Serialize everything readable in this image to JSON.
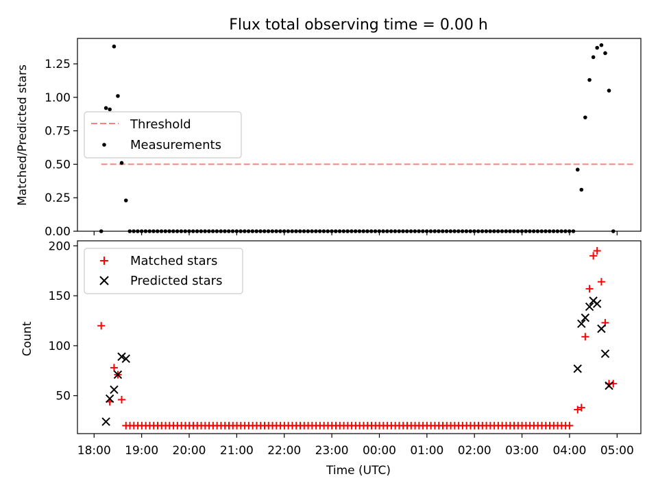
{
  "figure": {
    "title": "Flux total observing time = 0.00 h"
  },
  "chart_data": [
    {
      "type": "scatter",
      "title": "Flux total observing time = 0.00 h",
      "xlabel": "",
      "ylabel": "Matched/Predicted stars",
      "x_unit": "hours since 18:00 UTC",
      "xlim": [
        -0.35,
        11.5
      ],
      "ylim": [
        0,
        1.44
      ],
      "yticks": [
        0,
        0.25,
        0.5,
        0.75,
        1.0,
        1.25
      ],
      "ytick_labels": [
        "0.00",
        "0.25",
        "0.50",
        "0.75",
        "1.00",
        "1.25"
      ],
      "grid": false,
      "legend": {
        "placement": "center-left",
        "entries": [
          "Threshold",
          "Measurements"
        ]
      },
      "threshold": {
        "name": "Threshold",
        "value": 0.5,
        "x_range": [
          0.15,
          11.35
        ],
        "color": "#ff7f7f",
        "style": "dashed"
      },
      "series": [
        {
          "name": "Measurements",
          "marker": "dot",
          "color": "#000000",
          "points": [
            [
              0.15,
              0
            ],
            [
              0.25,
              0.92
            ],
            [
              0.33,
              0.91
            ],
            [
              0.42,
              1.38
            ],
            [
              0.5,
              1.01
            ],
            [
              0.58,
              0.51
            ],
            [
              0.67,
              0.23
            ],
            [
              10.17,
              0.46
            ],
            [
              10.25,
              0.31
            ],
            [
              10.33,
              0.85
            ],
            [
              10.42,
              1.13
            ],
            [
              10.5,
              1.3
            ],
            [
              10.58,
              1.37
            ],
            [
              10.67,
              1.39
            ],
            [
              10.75,
              1.33
            ],
            [
              10.83,
              1.05
            ],
            [
              10.92,
              0
            ]
          ],
          "zero_run": {
            "from": 0.75,
            "to": 10.08,
            "step": 0.0833,
            "value": 0
          }
        }
      ]
    },
    {
      "type": "scatter",
      "title": "",
      "xlabel": "Time (UTC)",
      "ylabel": "Count",
      "x_unit": "hours since 18:00 UTC",
      "xlim": [
        -0.35,
        11.5
      ],
      "ylim": [
        12,
        205
      ],
      "yticks": [
        50,
        100,
        150,
        200
      ],
      "ytick_labels": [
        "50",
        "100",
        "150",
        "200"
      ],
      "xticks": [
        0,
        1,
        2,
        3,
        4,
        5,
        6,
        7,
        8,
        9,
        10,
        11
      ],
      "xtick_labels": [
        "18:00",
        "19:00",
        "20:00",
        "21:00",
        "22:00",
        "23:00",
        "00:00",
        "01:00",
        "02:00",
        "03:00",
        "04:00",
        "05:00"
      ],
      "grid": false,
      "legend": {
        "placement": "upper-left",
        "entries": [
          "Matched stars",
          "Predicted stars"
        ]
      },
      "series": [
        {
          "name": "Matched stars",
          "marker": "plus",
          "color": "#ff0000",
          "points": [
            [
              0.15,
              120
            ],
            [
              0.33,
              44
            ],
            [
              0.42,
              78
            ],
            [
              0.5,
              71
            ],
            [
              0.58,
              46
            ],
            [
              10.17,
              36
            ],
            [
              10.25,
              38
            ],
            [
              10.33,
              109
            ],
            [
              10.42,
              157
            ],
            [
              10.5,
              190
            ],
            [
              10.58,
              195
            ],
            [
              10.67,
              164
            ],
            [
              10.75,
              123
            ],
            [
              10.83,
              62
            ],
            [
              10.92,
              62
            ]
          ],
          "flat_run": {
            "from": 0.67,
            "to": 10.08,
            "step": 0.0833,
            "value": 20
          }
        },
        {
          "name": "Predicted stars",
          "marker": "x",
          "color": "#000000",
          "points": [
            [
              0.25,
              24
            ],
            [
              0.33,
              47
            ],
            [
              0.42,
              56
            ],
            [
              0.5,
              71
            ],
            [
              0.58,
              89
            ],
            [
              0.67,
              87
            ],
            [
              10.17,
              77
            ],
            [
              10.25,
              122
            ],
            [
              10.33,
              128
            ],
            [
              10.42,
              139
            ],
            [
              10.5,
              145
            ],
            [
              10.58,
              142
            ],
            [
              10.67,
              117
            ],
            [
              10.75,
              92
            ],
            [
              10.83,
              60
            ]
          ]
        }
      ]
    }
  ]
}
